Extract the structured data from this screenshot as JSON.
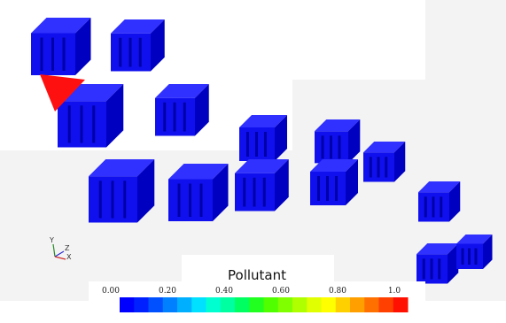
{
  "colorbar": {
    "title": "Pollutant",
    "ticks": [
      "0.00",
      "0.20",
      "0.40",
      "0.60",
      "0.80",
      "1.0"
    ]
  },
  "axes_triad": {
    "labels": [
      "Y",
      "Z",
      "X"
    ]
  }
}
